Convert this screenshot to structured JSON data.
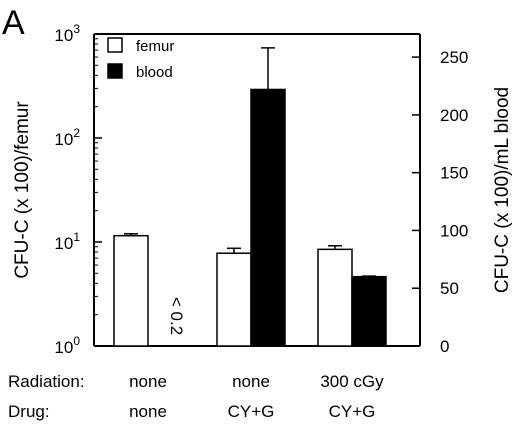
{
  "panel_label": "A",
  "chart_data": {
    "type": "bar",
    "groups": [
      {
        "radiation": "none",
        "drug": "none"
      },
      {
        "radiation": "none",
        "drug": "CY+G"
      },
      {
        "radiation": "300 cGy",
        "drug": "CY+G"
      }
    ],
    "row_labels": {
      "radiation": "Radiation:",
      "drug": "Drug:"
    },
    "series": [
      {
        "name": "femur",
        "axis": "left",
        "fill": "#ffffff",
        "values": [
          11.5,
          7.8,
          8.5
        ],
        "error_upper": [
          12.0,
          8.7,
          9.2
        ]
      },
      {
        "name": "blood",
        "axis": "right",
        "fill": "#000000",
        "values": [
          null,
          222,
          60
        ],
        "error_upper": [
          null,
          258,
          60.5
        ]
      }
    ],
    "annotations": [
      {
        "group": 0,
        "series": "blood",
        "text": "< 0.2"
      }
    ],
    "left_axis": {
      "label": "CFU-C (x 100)/femur",
      "scale": "log",
      "range": [
        1,
        1000
      ],
      "ticks": [
        {
          "value": 1,
          "base": "10",
          "exp": "0"
        },
        {
          "value": 10,
          "base": "10",
          "exp": "1"
        },
        {
          "value": 100,
          "base": "10",
          "exp": "2"
        },
        {
          "value": 1000,
          "base": "10",
          "exp": "3"
        }
      ]
    },
    "right_axis": {
      "label": "CFU-C (x 100)/mL blood",
      "scale": "linear",
      "range": [
        0,
        270
      ],
      "ticks": [
        0,
        50,
        100,
        150,
        200,
        250
      ]
    },
    "legend": {
      "placement": "top-left",
      "entries": [
        {
          "name": "femur",
          "fill": "#ffffff"
        },
        {
          "name": "blood",
          "fill": "#000000"
        }
      ]
    }
  }
}
